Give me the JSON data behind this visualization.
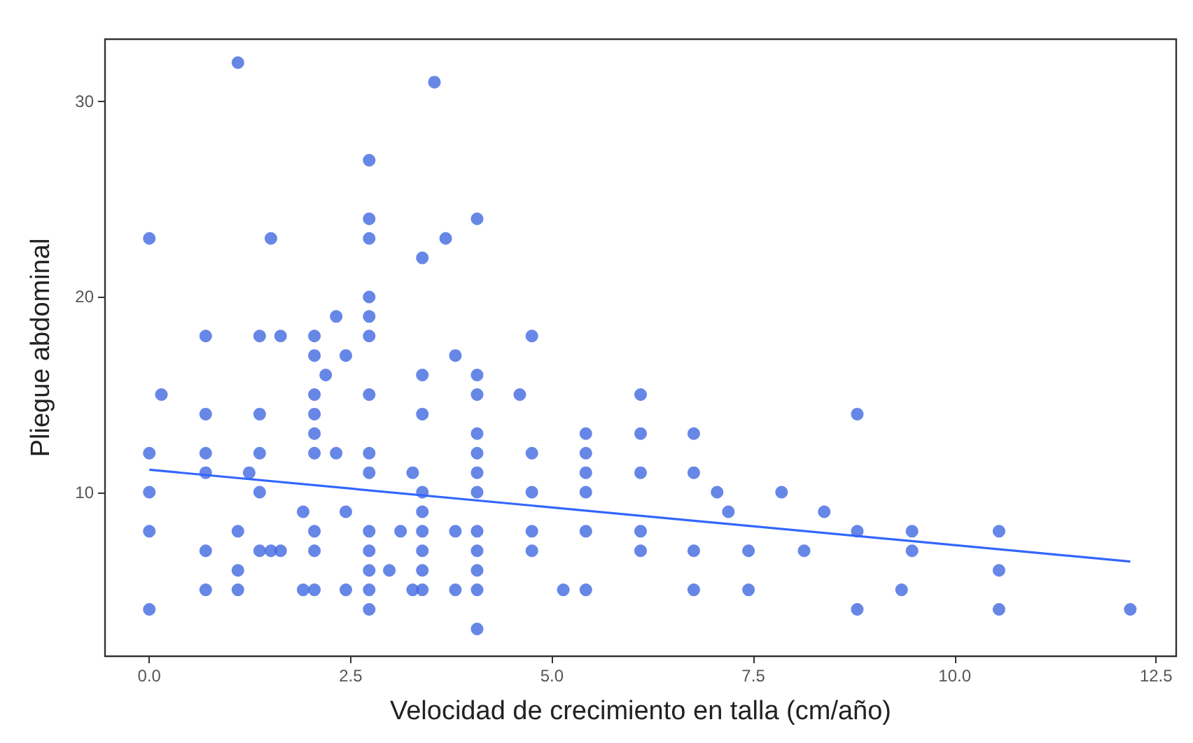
{
  "chart_data": {
    "type": "scatter",
    "xlabel": "Velocidad de crecimiento en talla (cm/año)",
    "ylabel": "Pliegue abdominal",
    "xlim": [
      -0.55,
      12.75
    ],
    "ylim": [
      1.6,
      33.2
    ],
    "xticks": [
      {
        "value": 0,
        "label": "0.0"
      },
      {
        "value": 2.5,
        "label": "2.5"
      },
      {
        "value": 5,
        "label": "5.0"
      },
      {
        "value": 7.5,
        "label": "7.5"
      },
      {
        "value": 10,
        "label": "10.0"
      },
      {
        "value": 12.5,
        "label": "12.5"
      }
    ],
    "yticks": [
      10,
      20,
      30
    ],
    "grid": false,
    "marker": "circle",
    "series": [
      {
        "color": "#4169e1",
        "x": [
          0,
          0,
          0,
          0,
          0,
          0.15,
          0.7,
          0.7,
          0.7,
          0.7,
          0.7,
          0.7,
          1.1,
          1.1,
          1.1,
          1.1,
          1.24,
          1.37,
          1.37,
          1.37,
          1.37,
          1.37,
          1.51,
          1.51,
          1.63,
          1.63,
          1.91,
          1.91,
          2.05,
          2.05,
          2.05,
          2.05,
          2.05,
          2.05,
          2.05,
          2.05,
          2.05,
          2.19,
          2.32,
          2.32,
          2.44,
          2.44,
          2.44,
          2.73,
          2.73,
          2.73,
          2.73,
          2.73,
          2.73,
          2.73,
          2.73,
          2.73,
          2.73,
          2.73,
          2.73,
          2.73,
          2.73,
          2.98,
          3.12,
          3.27,
          3.27,
          3.39,
          3.39,
          3.39,
          3.39,
          3.39,
          3.39,
          3.39,
          3.39,
          3.39,
          3.54,
          3.68,
          3.8,
          3.8,
          3.8,
          4.07,
          4.07,
          4.07,
          4.07,
          4.07,
          4.07,
          4.07,
          4.07,
          4.07,
          4.07,
          4.07,
          4.07,
          4.6,
          4.75,
          4.75,
          4.75,
          4.75,
          4.75,
          5.14,
          5.42,
          5.42,
          5.42,
          5.42,
          5.42,
          5.42,
          6.1,
          6.1,
          6.1,
          6.1,
          6.1,
          6.76,
          6.76,
          6.76,
          6.76,
          7.05,
          7.19,
          7.44,
          7.44,
          7.85,
          8.13,
          8.38,
          8.79,
          8.79,
          8.79,
          9.34,
          9.47,
          9.47,
          10.55,
          10.55,
          10.55,
          12.18
        ],
        "values": [
          23,
          12,
          10,
          8,
          4,
          15,
          18,
          14,
          12,
          11,
          7,
          5,
          32,
          8,
          6,
          5,
          11,
          18,
          14,
          12,
          10,
          7,
          23,
          7,
          18,
          7,
          9,
          5,
          18,
          17,
          15,
          14,
          13,
          12,
          8,
          7,
          5,
          16,
          19,
          12,
          17,
          9,
          5,
          27,
          24,
          23,
          20,
          19,
          18,
          15,
          12,
          11,
          8,
          7,
          6,
          5,
          4,
          6,
          8,
          11,
          5,
          22,
          16,
          14,
          10,
          9,
          8,
          7,
          6,
          5,
          31,
          23,
          17,
          8,
          5,
          24,
          16,
          15,
          13,
          12,
          11,
          10,
          8,
          7,
          6,
          5,
          3,
          15,
          18,
          12,
          10,
          8,
          7,
          5,
          13,
          12,
          11,
          10,
          8,
          5,
          15,
          13,
          11,
          8,
          7,
          13,
          11,
          7,
          5,
          10,
          9,
          7,
          5,
          10,
          7,
          9,
          14,
          8,
          4,
          5,
          8,
          7,
          8,
          6,
          4,
          4
        ]
      },
      {
        "type": "line",
        "color": "#3366ff",
        "x": [
          0,
          12.18
        ],
        "values": [
          11.15,
          6.45
        ],
        "marker": "none"
      }
    ]
  }
}
